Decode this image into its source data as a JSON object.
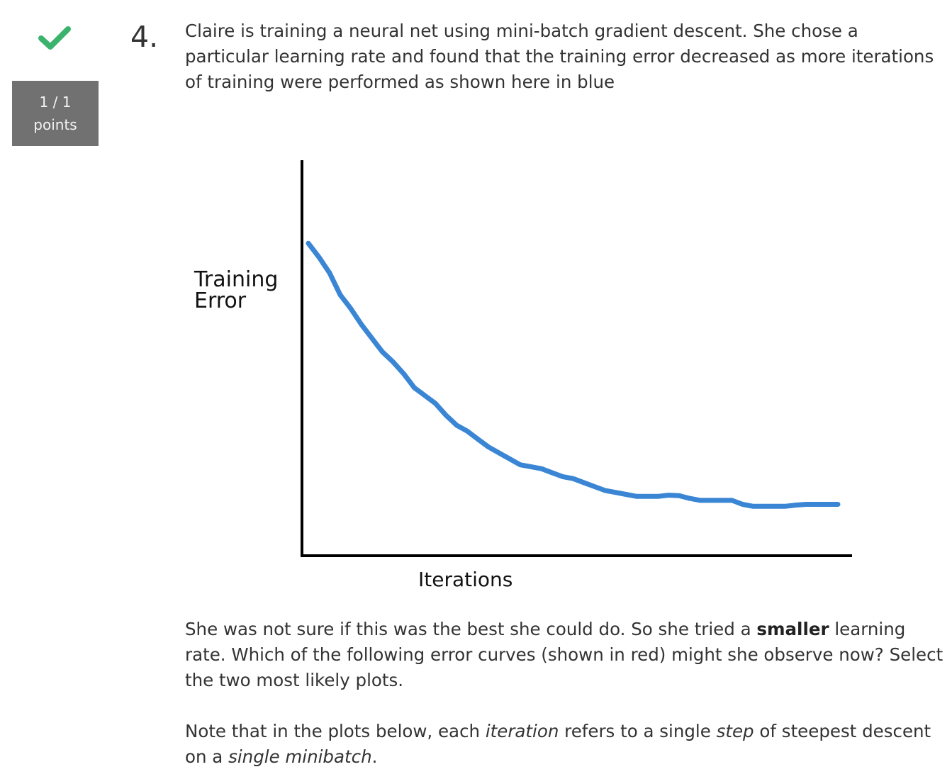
{
  "status": {
    "correct_icon": "check-icon",
    "points_score": "1 / 1",
    "points_label": "points",
    "check_color": "#3bb36c",
    "badge_color": "#717171"
  },
  "question": {
    "number": "4.",
    "text": "Claire is training a neural net using mini-batch gradient descent. She chose a particular learning rate and found that the training error decreased as more iterations of training were performed as shown here in blue",
    "para2_part1": "She was not sure if this was the best she could do. So she tried a ",
    "para2_bold": "smaller",
    "para2_part2": " learning rate. Which of the following error curves (shown in red) might she observe now? Select the two most likely plots.",
    "para3_part1": "Note that in the plots below, each ",
    "para3_em1": "iteration",
    "para3_part2": " refers to a single ",
    "para3_em2": "step",
    "para3_part3": " of steepest descent on a ",
    "para3_em3": "single minibatch",
    "para3_part4": "."
  },
  "chart_data": {
    "type": "line",
    "ylabel_line1": "Training",
    "ylabel_line2": "Error",
    "xlabel": "Iterations",
    "series_color": "#3a86d4",
    "x": [
      0,
      2,
      4,
      6,
      8,
      10,
      12,
      14,
      16,
      18,
      20,
      22,
      24,
      26,
      28,
      30,
      32,
      34,
      36,
      38,
      40,
      42,
      44,
      46,
      48,
      50,
      52,
      54,
      56,
      58,
      60,
      62,
      64,
      66,
      68,
      70,
      72,
      74,
      76,
      78,
      80,
      82,
      84,
      86,
      88,
      90,
      92,
      94,
      96,
      98,
      100
    ],
    "y": [
      79,
      75.5,
      71.5,
      66,
      62.5,
      58.5,
      55,
      51.5,
      49,
      46,
      42.5,
      40.5,
      38.5,
      35.5,
      33,
      31.5,
      29.5,
      27.5,
      26,
      24.5,
      23,
      22.5,
      22,
      21,
      20,
      19.5,
      18.5,
      17.5,
      16.5,
      16,
      15.5,
      15,
      15,
      15,
      15.3,
      15.2,
      14.5,
      14,
      14,
      14,
      14,
      13,
      12.5,
      12.5,
      12.5,
      12.5,
      12.8,
      13,
      13,
      13,
      13
    ],
    "xlim": [
      0,
      100
    ],
    "ylim": [
      0,
      100
    ]
  }
}
